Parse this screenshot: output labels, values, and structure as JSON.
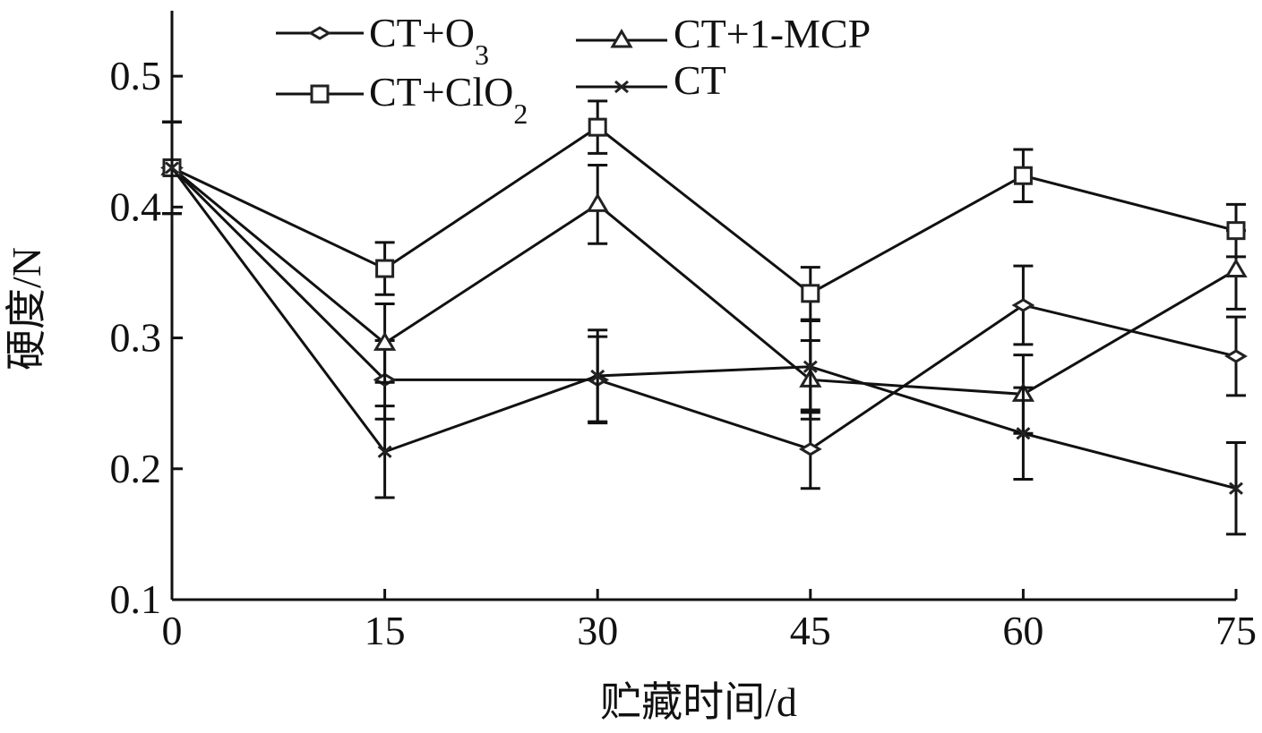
{
  "chart_data": {
    "type": "line",
    "title": "",
    "xlabel": "贮藏时间/d",
    "ylabel": "硬度/N",
    "x": [
      0,
      15,
      30,
      45,
      60,
      75
    ],
    "x_ticks": [
      "0",
      "15",
      "30",
      "45",
      "60",
      "75"
    ],
    "y_ticks": [
      "0.1",
      "0.2",
      "0.3",
      "0.4",
      "0.5"
    ],
    "xlim": [
      0,
      75
    ],
    "ylim": [
      0.1,
      0.55
    ],
    "grid": false,
    "legend_position": "top",
    "series": [
      {
        "name": "CT+O",
        "name_sub": "3",
        "marker": "diamond",
        "values": [
          0.43,
          0.268,
          0.268,
          0.215,
          0.325,
          0.286
        ],
        "errors": [
          0.035,
          0.03,
          0.033,
          0.03,
          0.03,
          0.03
        ]
      },
      {
        "name": "CT+1-MCP",
        "name_sub": "",
        "marker": "triangle",
        "values": [
          0.43,
          0.296,
          0.402,
          0.268,
          0.257,
          0.352
        ],
        "errors": [
          0.035,
          0.03,
          0.03,
          0.03,
          0.03,
          0.03
        ]
      },
      {
        "name": "CT+ClO",
        "name_sub": "2",
        "marker": "square",
        "values": [
          0.43,
          0.353,
          0.461,
          0.334,
          0.424,
          0.382
        ],
        "errors": [
          0.035,
          0.02,
          0.02,
          0.02,
          0.02,
          0.02
        ]
      },
      {
        "name": "CT",
        "name_sub": "",
        "marker": "x",
        "values": [
          0.43,
          0.213,
          0.271,
          0.278,
          0.227,
          0.185
        ],
        "errors": [
          0.035,
          0.035,
          0.035,
          0.035,
          0.035,
          0.035
        ]
      }
    ]
  }
}
